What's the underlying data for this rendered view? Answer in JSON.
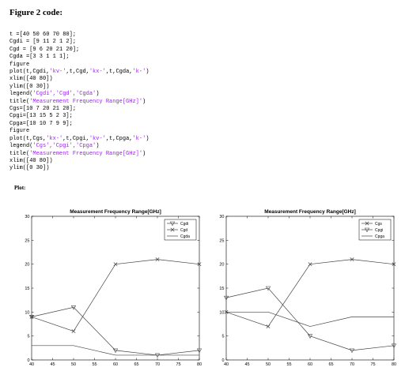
{
  "heading": "Figure 2 code:",
  "code_lines": [
    [
      {
        "t": "t =[40 50 60 70 80];"
      }
    ],
    [
      {
        "t": "Cgdi = [9 11 2 1 2];"
      }
    ],
    [
      {
        "t": "Cgd = [9 6 20 21 20];"
      }
    ],
    [
      {
        "t": "Cgda =[3 3 1 1 1];"
      }
    ],
    [
      {
        "t": "figure"
      }
    ],
    [
      {
        "t": "plot(t,Cgdi,"
      },
      {
        "t": "'kv-'",
        "s": true
      },
      {
        "t": ",t,Cgd,"
      },
      {
        "t": "'kx-'",
        "s": true
      },
      {
        "t": ",t,Cgda,"
      },
      {
        "t": "'k-'",
        "s": true
      },
      {
        "t": ")"
      }
    ],
    [
      {
        "t": "xlim([40 80])"
      }
    ],
    [
      {
        "t": "ylim([0 30])"
      }
    ],
    [
      {
        "t": "legend("
      },
      {
        "t": "'Cgdi','Cgd','Cgda'",
        "s": true
      },
      {
        "t": ")"
      }
    ],
    [
      {
        "t": "title("
      },
      {
        "t": "'Measurement Frequency Range[GHz]'",
        "s": true
      },
      {
        "t": ")"
      }
    ],
    [
      {
        "t": "Cgs=[10 7 20 21 20];"
      }
    ],
    [
      {
        "t": "Cpgi=[13 15 5 2 3];"
      }
    ],
    [
      {
        "t": "Cpga=[10 10 7 9 9];"
      }
    ],
    [
      {
        "t": "figure"
      }
    ],
    [
      {
        "t": "plot(t,Cgs,"
      },
      {
        "t": "'kx-'",
        "s": true
      },
      {
        "t": ",t,Cpgi,"
      },
      {
        "t": "'kv-'",
        "s": true
      },
      {
        "t": ",t,Cpga,"
      },
      {
        "t": "'k-'",
        "s": true
      },
      {
        "t": ")"
      }
    ],
    [
      {
        "t": "legend("
      },
      {
        "t": "'Cgs','Cpgi','Cpga'",
        "s": true
      },
      {
        "t": ")"
      }
    ],
    [
      {
        "t": "title("
      },
      {
        "t": "'Measurement Frequency Range[GHz]'",
        "s": true
      },
      {
        "t": ")"
      }
    ],
    [
      {
        "t": "xlim([40 80])"
      }
    ],
    [
      {
        "t": "ylim([0 30])"
      }
    ]
  ],
  "plot_label": "Plot:",
  "colors": {
    "code_string": "#a020f0",
    "line": "#444444"
  },
  "chart_data": [
    {
      "type": "line",
      "title": "Measurement Frequency Range[GHz]",
      "x": [
        40,
        50,
        60,
        70,
        80
      ],
      "xlim": [
        40,
        80
      ],
      "ylim": [
        0,
        30
      ],
      "xticks": [
        40,
        45,
        50,
        55,
        60,
        65,
        70,
        75,
        80
      ],
      "yticks": [
        0,
        5,
        10,
        15,
        20,
        25,
        30
      ],
      "legend_position": "top-right",
      "grid": false,
      "series": [
        {
          "name": "Cgdi",
          "marker": "triangle-down",
          "values": [
            9,
            11,
            2,
            1,
            2
          ]
        },
        {
          "name": "Cgd",
          "marker": "x",
          "values": [
            9,
            6,
            20,
            21,
            20
          ]
        },
        {
          "name": "Cgda",
          "marker": "none",
          "values": [
            3,
            3,
            1,
            1,
            1
          ]
        }
      ]
    },
    {
      "type": "line",
      "title": "Measurement Frequency Range[GHz]",
      "x": [
        40,
        50,
        60,
        70,
        80
      ],
      "xlim": [
        40,
        80
      ],
      "ylim": [
        0,
        30
      ],
      "xticks": [
        40,
        45,
        50,
        55,
        60,
        65,
        70,
        75,
        80
      ],
      "yticks": [
        0,
        5,
        10,
        15,
        20,
        25,
        30
      ],
      "legend_position": "top-right",
      "grid": false,
      "series": [
        {
          "name": "Cgs",
          "marker": "x",
          "values": [
            10,
            7,
            20,
            21,
            20
          ]
        },
        {
          "name": "Cpgi",
          "marker": "triangle-down",
          "values": [
            13,
            15,
            5,
            2,
            3
          ]
        },
        {
          "name": "Cpga",
          "marker": "none",
          "values": [
            10,
            10,
            7,
            9,
            9
          ]
        }
      ]
    }
  ]
}
